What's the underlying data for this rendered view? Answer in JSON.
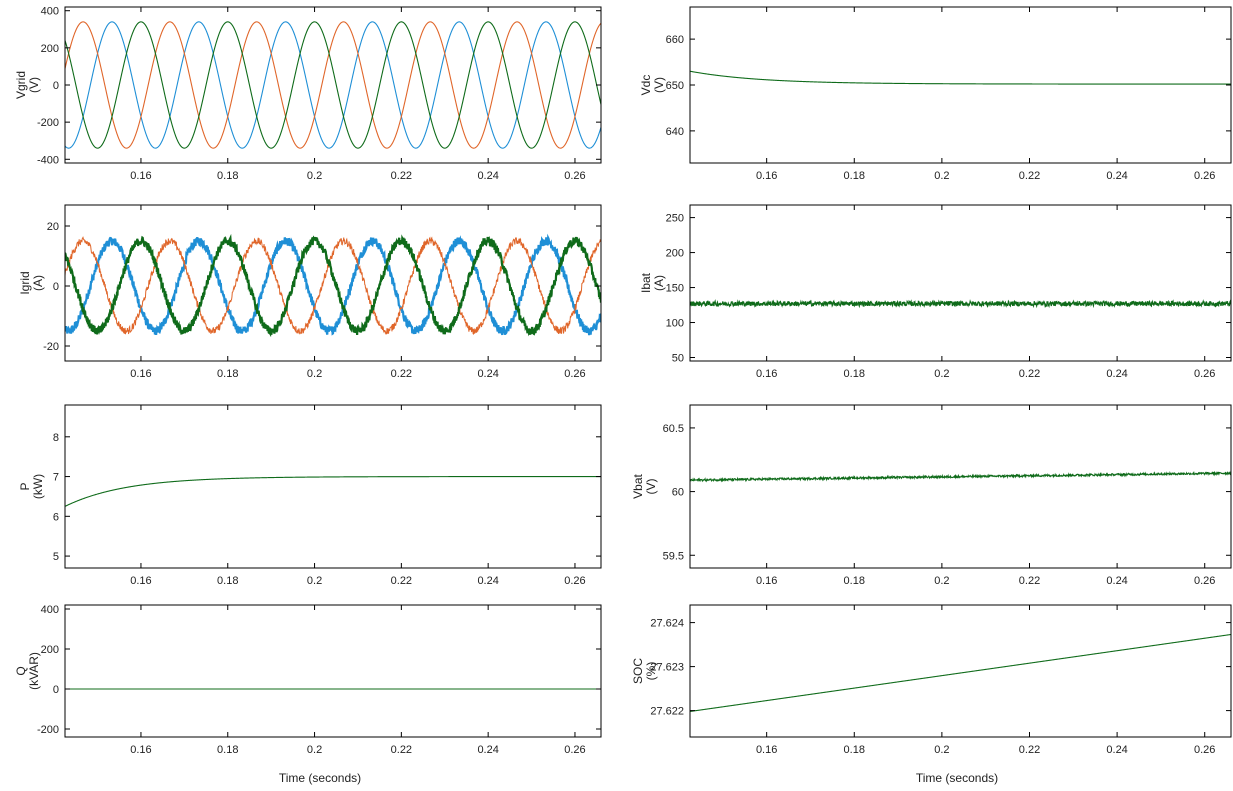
{
  "figure": {
    "xlabel_left": "Time (seconds)",
    "xlabel_right": "Time (seconds)"
  },
  "colors": {
    "phase_a": "#1f8fd6",
    "phase_b": "#e0662a",
    "phase_c": "#0f6b1a",
    "single": "#0f6b1a",
    "axis": "#000000"
  },
  "chart_data": [
    {
      "id": "vgrid",
      "type": "line",
      "ylabel": [
        "Vgrid",
        "(V)"
      ],
      "xlim": [
        0.1425,
        0.266
      ],
      "ylim": [
        -420,
        420
      ],
      "xticks": [
        "0.16",
        "0.18",
        "0.2",
        "0.22",
        "0.24",
        "0.26"
      ],
      "yticks": [
        "400",
        "200",
        "0",
        "-200",
        "-400"
      ],
      "ytick_values": [
        400,
        200,
        0,
        -200,
        -400
      ],
      "series": [
        {
          "kind": "sine",
          "amplitude": 340,
          "freq": 50,
          "phase_deg": 210,
          "color_key": "phase_a"
        },
        {
          "kind": "sine",
          "amplitude": 340,
          "freq": 50,
          "phase_deg": 330,
          "color_key": "phase_b"
        },
        {
          "kind": "sine",
          "amplitude": 340,
          "freq": 50,
          "phase_deg": 90,
          "color_key": "phase_c"
        }
      ]
    },
    {
      "id": "igrid",
      "type": "line",
      "ylabel": [
        "Igrid",
        "(A)"
      ],
      "xlim": [
        0.1425,
        0.266
      ],
      "ylim": [
        -25,
        27
      ],
      "xticks": [
        "0.16",
        "0.18",
        "0.2",
        "0.22",
        "0.24",
        "0.26"
      ],
      "yticks": [
        "20",
        "0",
        "-20"
      ],
      "ytick_values": [
        20,
        0,
        -20
      ],
      "series": [
        {
          "kind": "sine",
          "amplitude": 15,
          "freq": 50,
          "phase_deg": 210,
          "noise": 1.4,
          "color_key": "phase_a"
        },
        {
          "kind": "sine",
          "amplitude": 15,
          "freq": 50,
          "phase_deg": 330,
          "noise": 1.2,
          "color_key": "phase_b"
        },
        {
          "kind": "sine",
          "amplitude": 15,
          "freq": 50,
          "phase_deg": 90,
          "noise": 1.4,
          "color_key": "phase_c"
        }
      ]
    },
    {
      "id": "p",
      "type": "line",
      "ylabel": [
        "P",
        "(kW)"
      ],
      "xlim": [
        0.1425,
        0.266
      ],
      "ylim": [
        4.7,
        8.8
      ],
      "xticks": [
        "0.16",
        "0.18",
        "0.2",
        "0.22",
        "0.24",
        "0.26"
      ],
      "yticks": [
        "8",
        "7",
        "6",
        "5"
      ],
      "ytick_values": [
        8,
        7,
        6,
        5
      ],
      "series": [
        {
          "kind": "exp",
          "start": 6.25,
          "end": 7.0,
          "tau": 0.014,
          "color_key": "single"
        }
      ]
    },
    {
      "id": "q",
      "type": "line",
      "ylabel": [
        "Q",
        "(kVAR)"
      ],
      "xlim": [
        0.1425,
        0.266
      ],
      "ylim": [
        -240,
        420
      ],
      "xticks": [
        "0.16",
        "0.18",
        "0.2",
        "0.22",
        "0.24",
        "0.26"
      ],
      "yticks": [
        "400",
        "200",
        "0",
        "-200"
      ],
      "ytick_values": [
        400,
        200,
        0,
        -200
      ],
      "series": [
        {
          "kind": "const",
          "value": 0,
          "color_key": "single"
        }
      ]
    },
    {
      "id": "vdc",
      "type": "line",
      "ylabel": [
        "Vdc",
        "(V)"
      ],
      "xlim": [
        0.1425,
        0.266
      ],
      "ylim": [
        633,
        667
      ],
      "xticks": [
        "0.16",
        "0.18",
        "0.2",
        "0.22",
        "0.24",
        "0.26"
      ],
      "yticks": [
        "660",
        "650",
        "640"
      ],
      "ytick_values": [
        660,
        650,
        640
      ],
      "series": [
        {
          "kind": "exp",
          "start": 653,
          "end": 650.2,
          "tau": 0.016,
          "color_key": "single"
        }
      ]
    },
    {
      "id": "ibat",
      "type": "line",
      "ylabel": [
        "Ibat",
        "(A)"
      ],
      "xlim": [
        0.1425,
        0.266
      ],
      "ylim": [
        45,
        268
      ],
      "xticks": [
        "0.16",
        "0.18",
        "0.2",
        "0.22",
        "0.24",
        "0.26"
      ],
      "yticks": [
        "250",
        "200",
        "150",
        "100",
        "50"
      ],
      "ytick_values": [
        250,
        200,
        150,
        100,
        50
      ],
      "series": [
        {
          "kind": "const",
          "value": 127,
          "noise": 3.5,
          "color_key": "single"
        }
      ]
    },
    {
      "id": "vbat",
      "type": "line",
      "ylabel": [
        "Vbat",
        "(V)"
      ],
      "xlim": [
        0.1425,
        0.266
      ],
      "ylim": [
        59.4,
        60.68
      ],
      "xticks": [
        "0.16",
        "0.18",
        "0.2",
        "0.22",
        "0.24",
        "0.26"
      ],
      "yticks": [
        "60.5",
        "60",
        "59.5"
      ],
      "ytick_values": [
        60.5,
        60,
        59.5
      ],
      "series": [
        {
          "kind": "linear",
          "start": 60.09,
          "end": 60.145,
          "noise": 0.008,
          "color_key": "single"
        }
      ]
    },
    {
      "id": "soc",
      "type": "line",
      "ylabel": [
        "SOC",
        "(%)"
      ],
      "xlim": [
        0.1425,
        0.266
      ],
      "ylim": [
        27.6214,
        27.6244
      ],
      "xticks": [
        "0.16",
        "0.18",
        "0.2",
        "0.22",
        "0.24",
        "0.26"
      ],
      "yticks": [
        "27.624",
        "27.623",
        "27.622"
      ],
      "ytick_values": [
        27.624,
        27.623,
        27.622
      ],
      "series": [
        {
          "kind": "linear",
          "start": 27.62198,
          "end": 27.62373,
          "color_key": "single"
        }
      ]
    }
  ]
}
